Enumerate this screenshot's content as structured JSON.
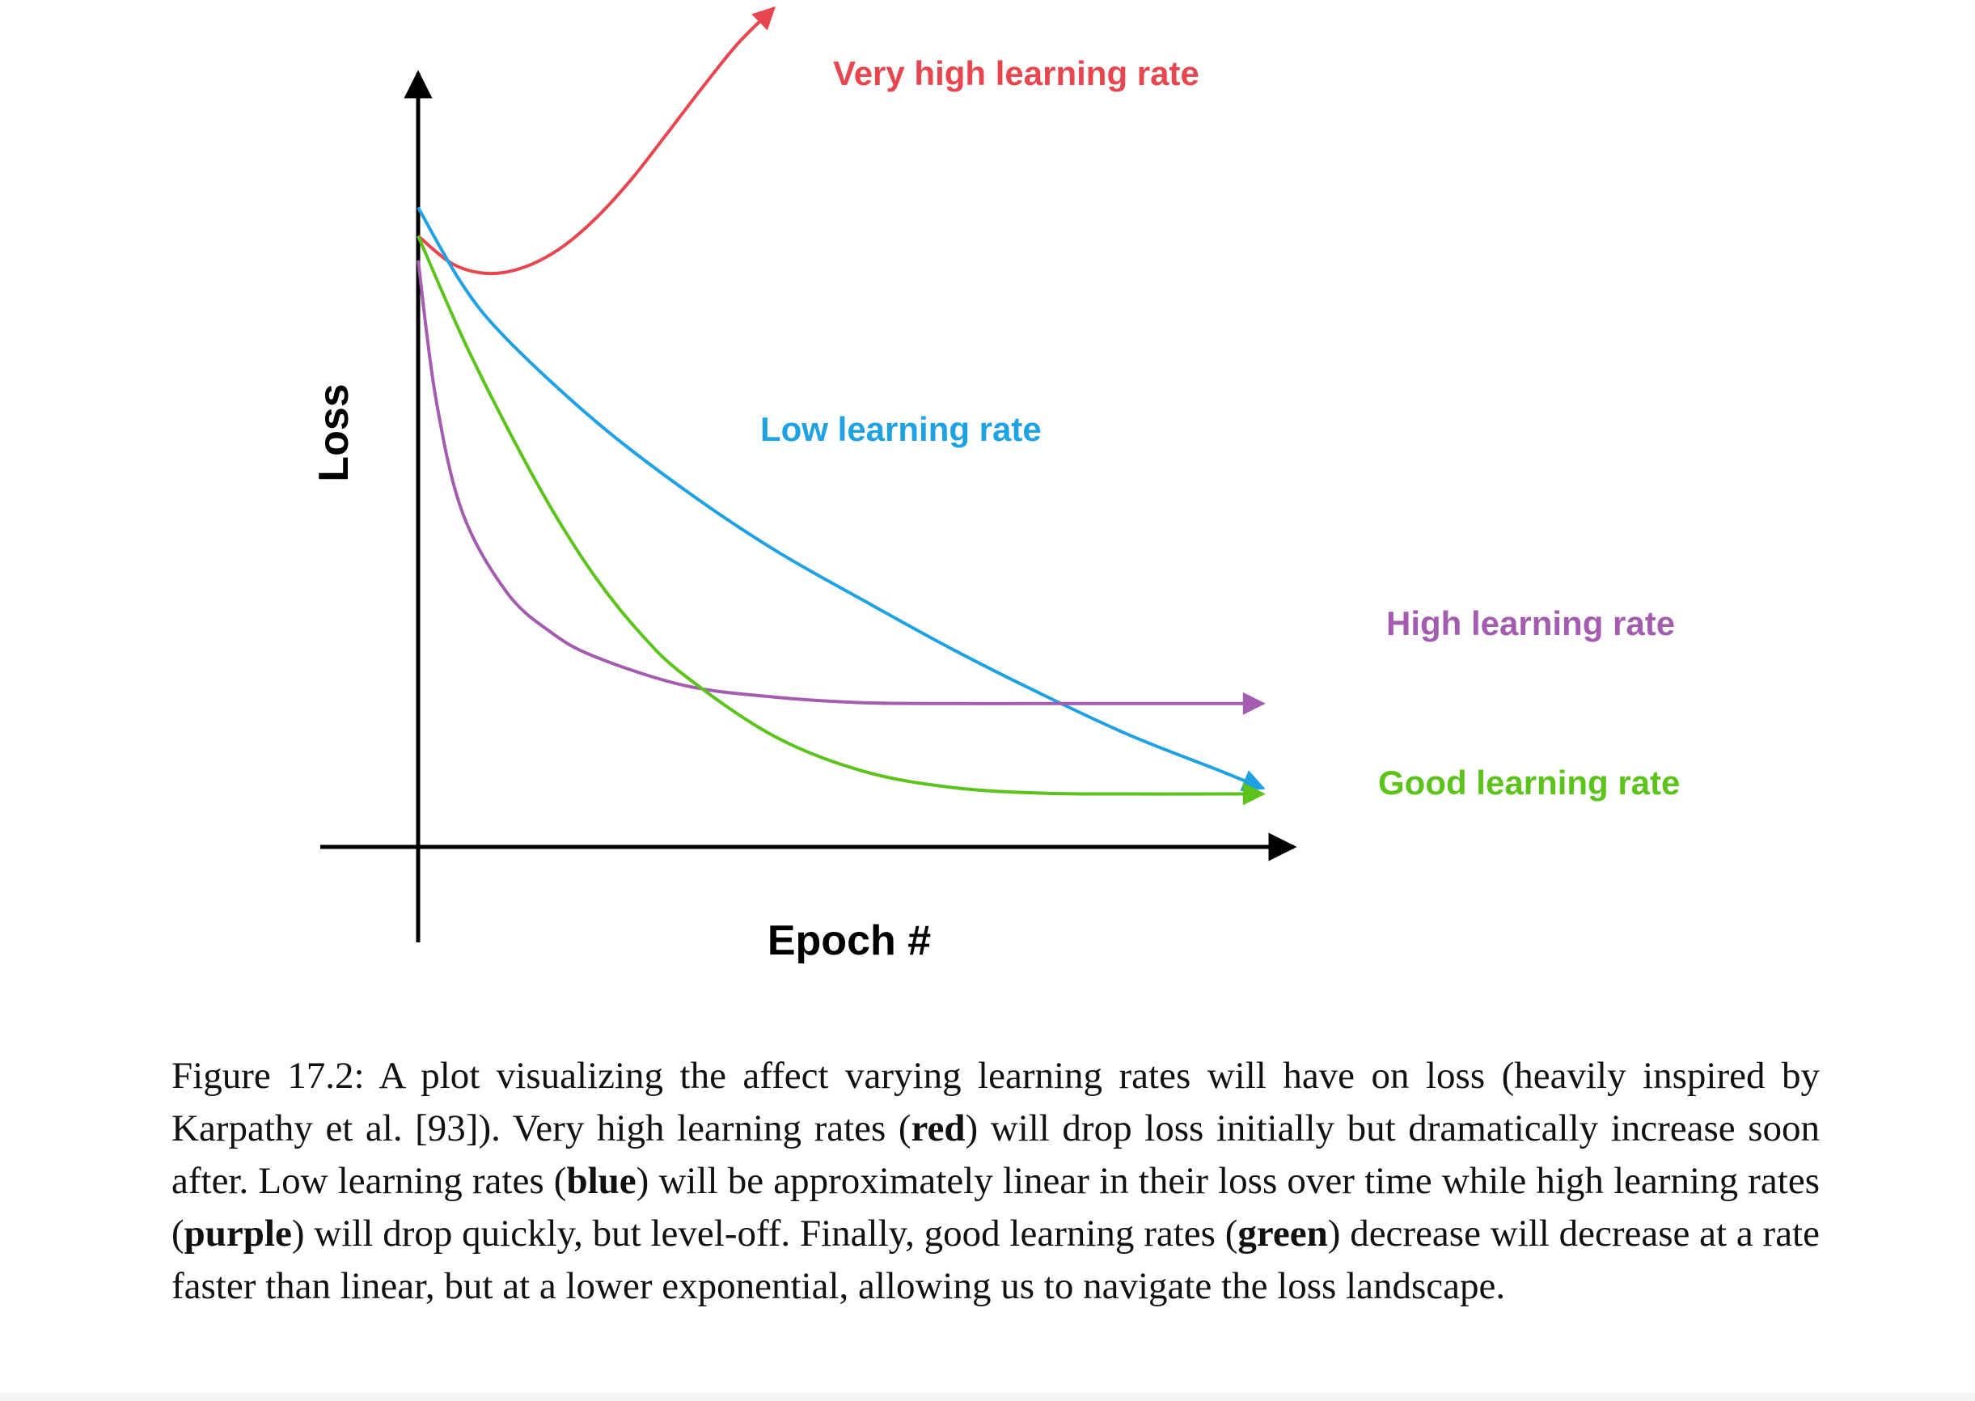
{
  "chart_data": {
    "type": "line",
    "xlabel": "Epoch #",
    "ylabel": "Loss",
    "xlim": [
      0,
      100
    ],
    "ylim": [
      0,
      100
    ],
    "grid": false,
    "legend": "labels placed next to curve ends",
    "series": [
      {
        "name": "Very high learning rate",
        "color": "#e8464f",
        "x": [
          0,
          4,
          8,
          12,
          16,
          20,
          24,
          28,
          32,
          36,
          40
        ],
        "y": [
          75,
          71.5,
          70.4,
          71.2,
          73.5,
          77.2,
          82,
          87.6,
          93.3,
          98.7,
          103
        ]
      },
      {
        "name": "Low learning rate",
        "color": "#1fa2e3",
        "x": [
          0,
          5,
          10,
          20,
          30,
          40,
          50,
          60,
          70,
          80,
          90,
          95
        ],
        "y": [
          78.5,
          69,
          62.3,
          52.2,
          43.8,
          36.5,
          30.3,
          24.3,
          18.8,
          13.7,
          9.4,
          7.2
        ]
      },
      {
        "name": "High learning rate",
        "color": "#a45cb0",
        "x": [
          0,
          2,
          5,
          10,
          15,
          20,
          30,
          40,
          50,
          60,
          70,
          80,
          90,
          95
        ],
        "y": [
          72,
          55,
          41,
          31.2,
          26.3,
          23.3,
          19.8,
          18.4,
          17.7,
          17.6,
          17.6,
          17.6,
          17.6,
          17.6
        ]
      },
      {
        "name": "Good learning rate",
        "color": "#5cc31b",
        "x": [
          0,
          5,
          10,
          15,
          20,
          25,
          30,
          40,
          50,
          60,
          70,
          80,
          90,
          95
        ],
        "y": [
          75,
          62.5,
          51.5,
          41.5,
          33,
          26.2,
          21,
          13.6,
          9.3,
          7.3,
          6.6,
          6.5,
          6.5,
          6.5
        ]
      }
    ]
  },
  "caption": {
    "prefix": "Figure 17.2: A plot visualizing the affect varying learning rates will have on loss (heavily inspired by Karpathy et al. [93]). Very high learning rates (",
    "red": "red",
    "after_red": ") will drop loss initially but dramatically increase soon after. Low learning rates (",
    "blue": "blue",
    "after_blue": ") will be approximately linear in their loss over time while high learning rates (",
    "purple": "purple",
    "after_purple": ") will drop quickly, but level-off.  Finally, good learning rates (",
    "green": "green",
    "suffix": ") decrease will decrease at a rate faster than linear, but at a lower exponential, allowing us to navigate the loss landscape."
  }
}
